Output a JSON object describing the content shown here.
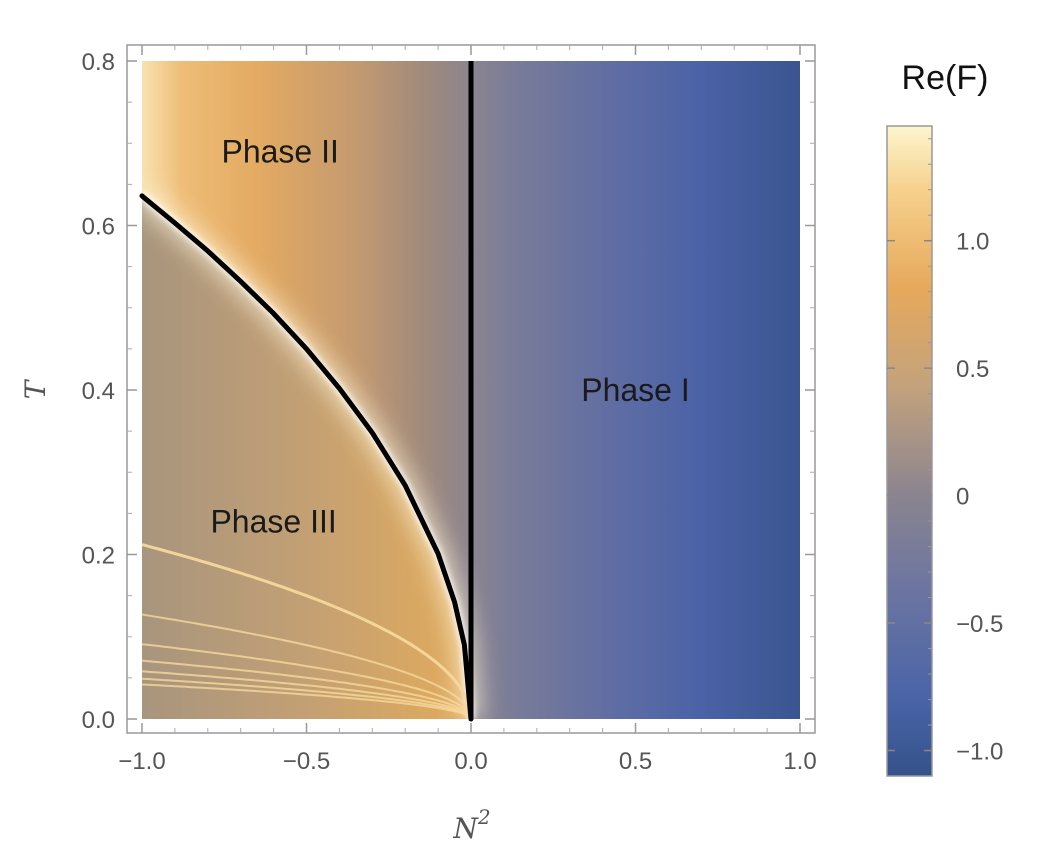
{
  "chart_data": {
    "type": "heatmap",
    "title": "",
    "xlabel": "N",
    "xlabel_superscript": "2",
    "ylabel": "T",
    "xlim": [
      -1.0,
      1.0
    ],
    "ylim": [
      0.0,
      0.8
    ],
    "x_ticks": [
      "−1.0",
      "−0.5",
      "0.0",
      "0.5",
      "1.0"
    ],
    "x_tick_values": [
      -1.0,
      -0.5,
      0.0,
      0.5,
      1.0
    ],
    "y_ticks": [
      "0.0",
      "0.2",
      "0.4",
      "0.6",
      "0.8"
    ],
    "y_tick_values": [
      0.0,
      0.2,
      0.4,
      0.6,
      0.8
    ],
    "colorbar": {
      "title": "Re(F)",
      "range": [
        -1.1,
        1.45
      ],
      "ticks": [
        "1.0",
        "0.5",
        "0",
        "−0.5",
        "−1.0"
      ],
      "tick_values": [
        1.0,
        0.5,
        0.0,
        -0.5,
        -1.0
      ],
      "colors": [
        "#34528a",
        "#4a64a8",
        "#8a8490",
        "#c4a27c",
        "#e6a95c",
        "#f6d08c",
        "#fdf5cf"
      ]
    },
    "regions": [
      {
        "label": "Phase I",
        "x": 0.5,
        "y": 0.4
      },
      {
        "label": "Phase II",
        "x": -0.58,
        "y": 0.69
      },
      {
        "label": "Phase III",
        "x": -0.6,
        "y": 0.24
      }
    ],
    "boundaries": [
      {
        "name": "vertical",
        "points": [
          [
            0.0,
            0.0
          ],
          [
            0.0,
            0.8
          ]
        ]
      },
      {
        "name": "curve",
        "points": [
          [
            -1.0,
            0.636
          ],
          [
            -0.9,
            0.603
          ],
          [
            -0.8,
            0.569
          ],
          [
            -0.7,
            0.532
          ],
          [
            -0.6,
            0.493
          ],
          [
            -0.5,
            0.45
          ],
          [
            -0.4,
            0.402
          ],
          [
            -0.3,
            0.348
          ],
          [
            -0.2,
            0.284
          ],
          [
            -0.1,
            0.201
          ],
          [
            -0.05,
            0.142
          ],
          [
            -0.02,
            0.09
          ],
          [
            0.0,
            0.0
          ]
        ]
      }
    ],
    "resonance_curves": [
      {
        "t_at_x_minus_1": 0.212
      },
      {
        "t_at_x_minus_1": 0.127
      },
      {
        "t_at_x_minus_1": 0.091
      },
      {
        "t_at_x_minus_1": 0.071
      },
      {
        "t_at_x_minus_1": 0.058
      },
      {
        "t_at_x_minus_1": 0.049
      },
      {
        "t_at_x_minus_1": 0.042
      }
    ]
  }
}
